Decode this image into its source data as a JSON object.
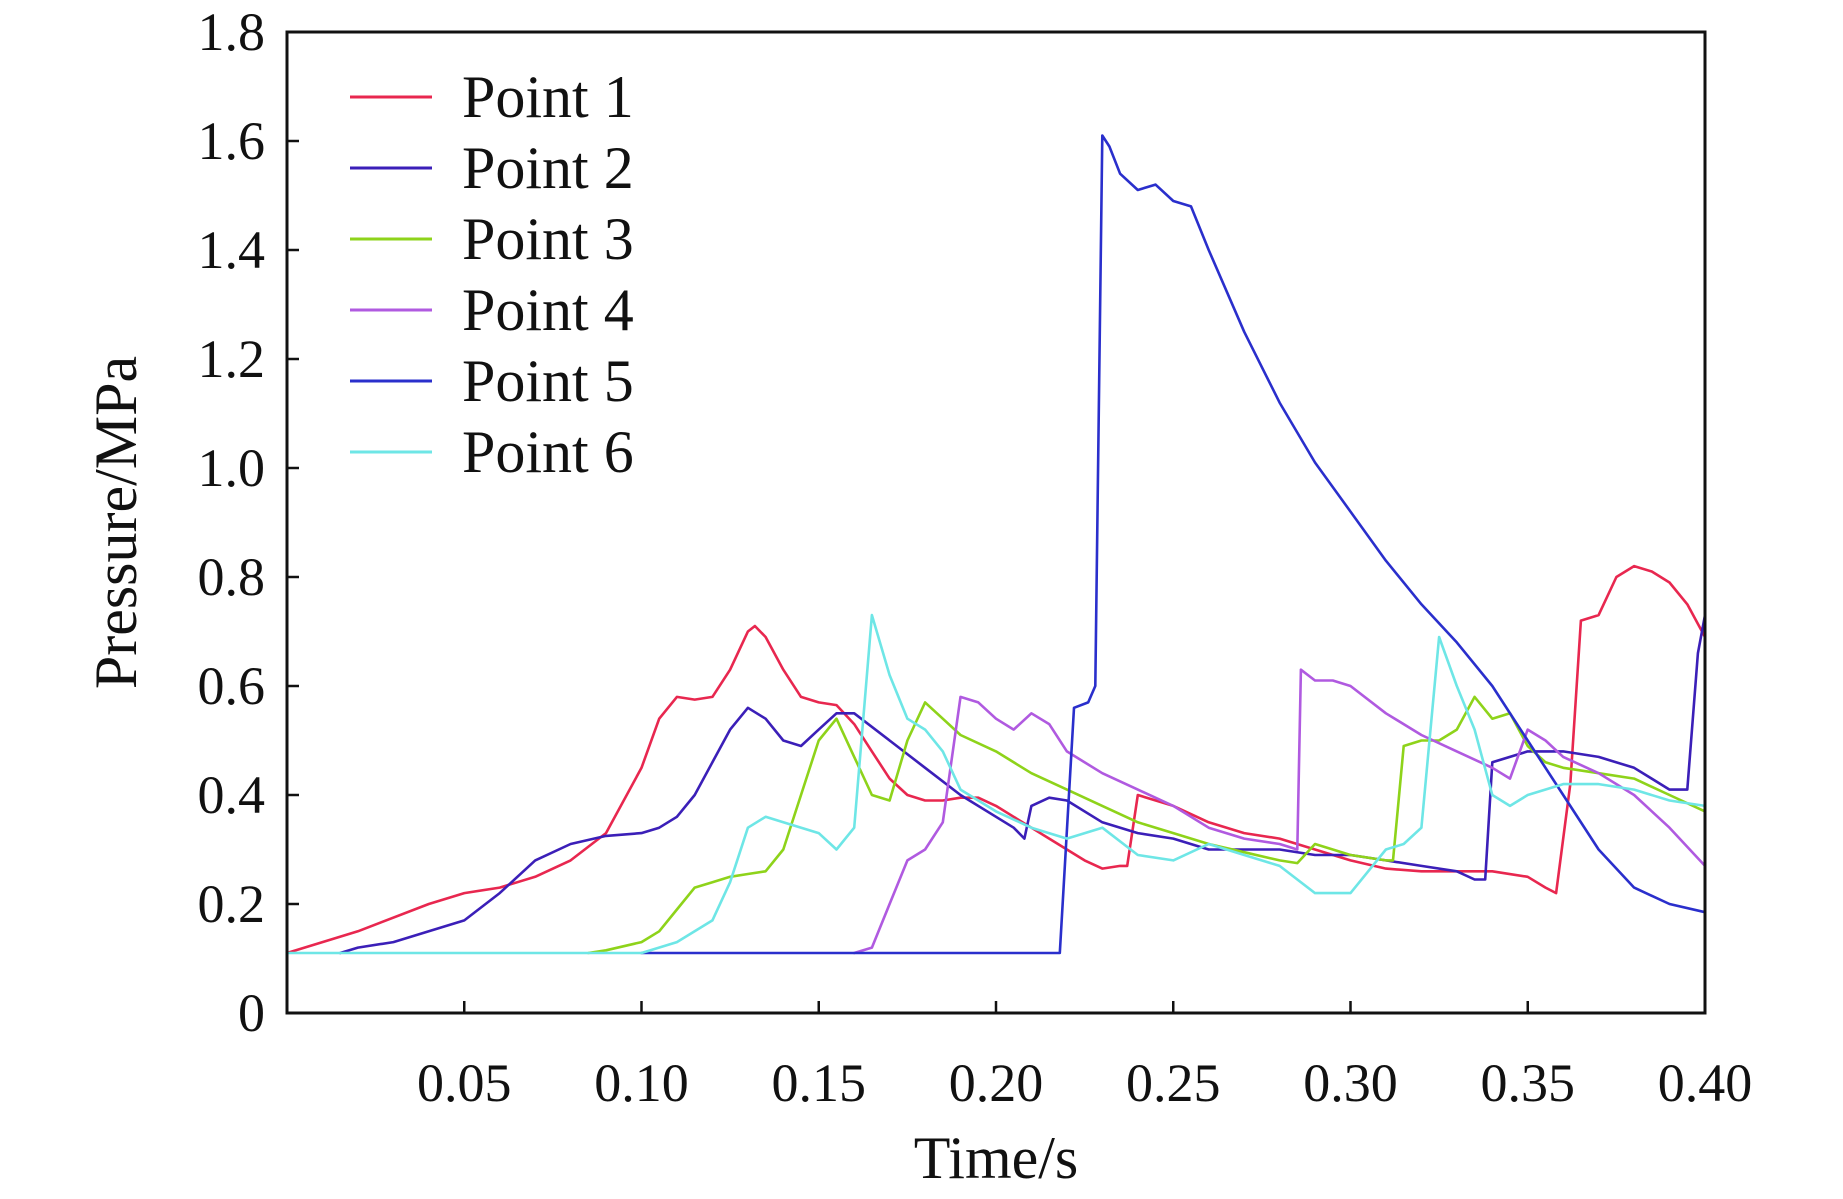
{
  "chart_data": {
    "type": "line",
    "title": "",
    "xlabel": "Time/s",
    "ylabel": "Pressure/MPa",
    "xlim": [
      0,
      0.4
    ],
    "ylim": [
      0,
      1.8
    ],
    "xticks": [
      0.05,
      0.1,
      0.15,
      0.2,
      0.25,
      0.3,
      0.35,
      0.4
    ],
    "xtick_labels": [
      "0.05",
      "0.10",
      "0.15",
      "0.20",
      "0.25",
      "0.30",
      "0.35",
      "0.40"
    ],
    "yticks": [
      0,
      0.2,
      0.4,
      0.6,
      0.8,
      1.0,
      1.2,
      1.4,
      1.6,
      1.8
    ],
    "ytick_labels": [
      "0",
      "0.2",
      "0.4",
      "0.6",
      "0.8",
      "1.0",
      "1.2",
      "1.4",
      "1.6",
      "1.8"
    ],
    "grid": false,
    "legend_position": "top-left",
    "series": [
      {
        "name": "Point 1",
        "color": "#e8274f",
        "points": [
          [
            0,
            0.11
          ],
          [
            0.02,
            0.15
          ],
          [
            0.04,
            0.2
          ],
          [
            0.05,
            0.22
          ],
          [
            0.06,
            0.23
          ],
          [
            0.07,
            0.25
          ],
          [
            0.08,
            0.28
          ],
          [
            0.09,
            0.33
          ],
          [
            0.1,
            0.45
          ],
          [
            0.105,
            0.54
          ],
          [
            0.11,
            0.58
          ],
          [
            0.115,
            0.575
          ],
          [
            0.12,
            0.58
          ],
          [
            0.125,
            0.63
          ],
          [
            0.13,
            0.7
          ],
          [
            0.132,
            0.71
          ],
          [
            0.135,
            0.69
          ],
          [
            0.14,
            0.63
          ],
          [
            0.145,
            0.58
          ],
          [
            0.15,
            0.57
          ],
          [
            0.155,
            0.565
          ],
          [
            0.16,
            0.53
          ],
          [
            0.165,
            0.48
          ],
          [
            0.17,
            0.43
          ],
          [
            0.175,
            0.4
          ],
          [
            0.18,
            0.39
          ],
          [
            0.185,
            0.39
          ],
          [
            0.19,
            0.395
          ],
          [
            0.195,
            0.395
          ],
          [
            0.2,
            0.38
          ],
          [
            0.205,
            0.36
          ],
          [
            0.21,
            0.34
          ],
          [
            0.215,
            0.32
          ],
          [
            0.22,
            0.3
          ],
          [
            0.225,
            0.28
          ],
          [
            0.23,
            0.265
          ],
          [
            0.235,
            0.27
          ],
          [
            0.237,
            0.27
          ],
          [
            0.24,
            0.4
          ],
          [
            0.25,
            0.38
          ],
          [
            0.26,
            0.35
          ],
          [
            0.27,
            0.33
          ],
          [
            0.28,
            0.32
          ],
          [
            0.29,
            0.3
          ],
          [
            0.3,
            0.28
          ],
          [
            0.31,
            0.265
          ],
          [
            0.32,
            0.26
          ],
          [
            0.33,
            0.26
          ],
          [
            0.34,
            0.26
          ],
          [
            0.35,
            0.25
          ],
          [
            0.355,
            0.23
          ],
          [
            0.358,
            0.22
          ],
          [
            0.362,
            0.42
          ],
          [
            0.365,
            0.72
          ],
          [
            0.37,
            0.73
          ],
          [
            0.375,
            0.8
          ],
          [
            0.38,
            0.82
          ],
          [
            0.385,
            0.81
          ],
          [
            0.39,
            0.79
          ],
          [
            0.395,
            0.75
          ],
          [
            0.4,
            0.69
          ]
        ]
      },
      {
        "name": "Point 2",
        "color": "#3b1fb8",
        "points": [
          [
            0.015,
            0.11
          ],
          [
            0.02,
            0.12
          ],
          [
            0.03,
            0.13
          ],
          [
            0.04,
            0.15
          ],
          [
            0.05,
            0.17
          ],
          [
            0.06,
            0.22
          ],
          [
            0.065,
            0.25
          ],
          [
            0.07,
            0.28
          ],
          [
            0.08,
            0.31
          ],
          [
            0.09,
            0.325
          ],
          [
            0.1,
            0.33
          ],
          [
            0.105,
            0.34
          ],
          [
            0.11,
            0.36
          ],
          [
            0.115,
            0.4
          ],
          [
            0.12,
            0.46
          ],
          [
            0.125,
            0.52
          ],
          [
            0.13,
            0.56
          ],
          [
            0.135,
            0.54
          ],
          [
            0.14,
            0.5
          ],
          [
            0.145,
            0.49
          ],
          [
            0.15,
            0.52
          ],
          [
            0.155,
            0.55
          ],
          [
            0.16,
            0.55
          ],
          [
            0.17,
            0.5
          ],
          [
            0.18,
            0.45
          ],
          [
            0.19,
            0.4
          ],
          [
            0.2,
            0.36
          ],
          [
            0.205,
            0.34
          ],
          [
            0.208,
            0.32
          ],
          [
            0.21,
            0.38
          ],
          [
            0.215,
            0.395
          ],
          [
            0.22,
            0.39
          ],
          [
            0.23,
            0.35
          ],
          [
            0.24,
            0.33
          ],
          [
            0.25,
            0.32
          ],
          [
            0.26,
            0.3
          ],
          [
            0.27,
            0.3
          ],
          [
            0.28,
            0.3
          ],
          [
            0.29,
            0.29
          ],
          [
            0.3,
            0.29
          ],
          [
            0.31,
            0.28
          ],
          [
            0.32,
            0.27
          ],
          [
            0.33,
            0.26
          ],
          [
            0.335,
            0.245
          ],
          [
            0.338,
            0.245
          ],
          [
            0.34,
            0.46
          ],
          [
            0.35,
            0.48
          ],
          [
            0.36,
            0.48
          ],
          [
            0.37,
            0.47
          ],
          [
            0.38,
            0.45
          ],
          [
            0.39,
            0.41
          ],
          [
            0.395,
            0.41
          ],
          [
            0.398,
            0.66
          ],
          [
            0.4,
            0.73
          ]
        ]
      },
      {
        "name": "Point 3",
        "color": "#8ed31a",
        "points": [
          [
            0.085,
            0.11
          ],
          [
            0.09,
            0.115
          ],
          [
            0.1,
            0.13
          ],
          [
            0.105,
            0.15
          ],
          [
            0.11,
            0.19
          ],
          [
            0.115,
            0.23
          ],
          [
            0.12,
            0.24
          ],
          [
            0.125,
            0.25
          ],
          [
            0.13,
            0.255
          ],
          [
            0.135,
            0.26
          ],
          [
            0.14,
            0.3
          ],
          [
            0.145,
            0.4
          ],
          [
            0.15,
            0.5
          ],
          [
            0.155,
            0.54
          ],
          [
            0.16,
            0.47
          ],
          [
            0.165,
            0.4
          ],
          [
            0.17,
            0.39
          ],
          [
            0.175,
            0.5
          ],
          [
            0.18,
            0.57
          ],
          [
            0.185,
            0.54
          ],
          [
            0.19,
            0.51
          ],
          [
            0.2,
            0.48
          ],
          [
            0.21,
            0.44
          ],
          [
            0.22,
            0.41
          ],
          [
            0.23,
            0.38
          ],
          [
            0.24,
            0.35
          ],
          [
            0.25,
            0.33
          ],
          [
            0.26,
            0.31
          ],
          [
            0.27,
            0.295
          ],
          [
            0.28,
            0.28
          ],
          [
            0.285,
            0.275
          ],
          [
            0.29,
            0.31
          ],
          [
            0.295,
            0.3
          ],
          [
            0.3,
            0.29
          ],
          [
            0.31,
            0.28
          ],
          [
            0.312,
            0.28
          ],
          [
            0.315,
            0.49
          ],
          [
            0.32,
            0.5
          ],
          [
            0.325,
            0.5
          ],
          [
            0.33,
            0.52
          ],
          [
            0.335,
            0.58
          ],
          [
            0.34,
            0.54
          ],
          [
            0.345,
            0.55
          ],
          [
            0.35,
            0.49
          ],
          [
            0.355,
            0.46
          ],
          [
            0.36,
            0.45
          ],
          [
            0.37,
            0.44
          ],
          [
            0.38,
            0.43
          ],
          [
            0.39,
            0.4
          ],
          [
            0.4,
            0.37
          ]
        ]
      },
      {
        "name": "Point 4",
        "color": "#b05ae0",
        "points": [
          [
            0.16,
            0.11
          ],
          [
            0.165,
            0.12
          ],
          [
            0.17,
            0.2
          ],
          [
            0.175,
            0.28
          ],
          [
            0.18,
            0.3
          ],
          [
            0.185,
            0.35
          ],
          [
            0.19,
            0.58
          ],
          [
            0.195,
            0.57
          ],
          [
            0.2,
            0.54
          ],
          [
            0.205,
            0.52
          ],
          [
            0.21,
            0.55
          ],
          [
            0.215,
            0.53
          ],
          [
            0.22,
            0.48
          ],
          [
            0.23,
            0.44
          ],
          [
            0.24,
            0.41
          ],
          [
            0.25,
            0.38
          ],
          [
            0.26,
            0.34
          ],
          [
            0.27,
            0.32
          ],
          [
            0.28,
            0.31
          ],
          [
            0.285,
            0.3
          ],
          [
            0.286,
            0.63
          ],
          [
            0.29,
            0.61
          ],
          [
            0.295,
            0.61
          ],
          [
            0.3,
            0.6
          ],
          [
            0.31,
            0.55
          ],
          [
            0.32,
            0.51
          ],
          [
            0.33,
            0.48
          ],
          [
            0.34,
            0.45
          ],
          [
            0.345,
            0.43
          ],
          [
            0.35,
            0.52
          ],
          [
            0.355,
            0.5
          ],
          [
            0.36,
            0.47
          ],
          [
            0.37,
            0.44
          ],
          [
            0.38,
            0.4
          ],
          [
            0.39,
            0.34
          ],
          [
            0.4,
            0.27
          ]
        ]
      },
      {
        "name": "Point 5",
        "color": "#2a2fcc",
        "points": [
          [
            0.1,
            0.11
          ],
          [
            0.15,
            0.11
          ],
          [
            0.2,
            0.11
          ],
          [
            0.215,
            0.11
          ],
          [
            0.218,
            0.11
          ],
          [
            0.222,
            0.56
          ],
          [
            0.226,
            0.57
          ],
          [
            0.228,
            0.6
          ],
          [
            0.23,
            1.61
          ],
          [
            0.232,
            1.59
          ],
          [
            0.235,
            1.54
          ],
          [
            0.24,
            1.51
          ],
          [
            0.245,
            1.52
          ],
          [
            0.25,
            1.49
          ],
          [
            0.255,
            1.48
          ],
          [
            0.26,
            1.4
          ],
          [
            0.27,
            1.25
          ],
          [
            0.28,
            1.12
          ],
          [
            0.29,
            1.01
          ],
          [
            0.3,
            0.92
          ],
          [
            0.31,
            0.83
          ],
          [
            0.32,
            0.75
          ],
          [
            0.33,
            0.68
          ],
          [
            0.34,
            0.6
          ],
          [
            0.35,
            0.5
          ],
          [
            0.36,
            0.4
          ],
          [
            0.37,
            0.3
          ],
          [
            0.38,
            0.23
          ],
          [
            0.39,
            0.2
          ],
          [
            0.4,
            0.185
          ]
        ]
      },
      {
        "name": "Point 6",
        "color": "#6ee6e6",
        "points": [
          [
            0,
            0.11
          ],
          [
            0.05,
            0.11
          ],
          [
            0.1,
            0.11
          ],
          [
            0.11,
            0.13
          ],
          [
            0.12,
            0.17
          ],
          [
            0.125,
            0.24
          ],
          [
            0.13,
            0.34
          ],
          [
            0.135,
            0.36
          ],
          [
            0.14,
            0.35
          ],
          [
            0.15,
            0.33
          ],
          [
            0.155,
            0.3
          ],
          [
            0.16,
            0.34
          ],
          [
            0.165,
            0.73
          ],
          [
            0.17,
            0.62
          ],
          [
            0.175,
            0.54
          ],
          [
            0.18,
            0.52
          ],
          [
            0.185,
            0.48
          ],
          [
            0.19,
            0.41
          ],
          [
            0.2,
            0.37
          ],
          [
            0.21,
            0.34
          ],
          [
            0.22,
            0.32
          ],
          [
            0.23,
            0.34
          ],
          [
            0.24,
            0.29
          ],
          [
            0.25,
            0.28
          ],
          [
            0.26,
            0.31
          ],
          [
            0.27,
            0.29
          ],
          [
            0.28,
            0.27
          ],
          [
            0.29,
            0.22
          ],
          [
            0.3,
            0.22
          ],
          [
            0.305,
            0.26
          ],
          [
            0.31,
            0.3
          ],
          [
            0.315,
            0.31
          ],
          [
            0.32,
            0.34
          ],
          [
            0.325,
            0.69
          ],
          [
            0.33,
            0.6
          ],
          [
            0.335,
            0.52
          ],
          [
            0.34,
            0.4
          ],
          [
            0.345,
            0.38
          ],
          [
            0.35,
            0.4
          ],
          [
            0.36,
            0.42
          ],
          [
            0.37,
            0.42
          ],
          [
            0.38,
            0.41
          ],
          [
            0.39,
            0.39
          ],
          [
            0.4,
            0.38
          ]
        ]
      }
    ]
  }
}
